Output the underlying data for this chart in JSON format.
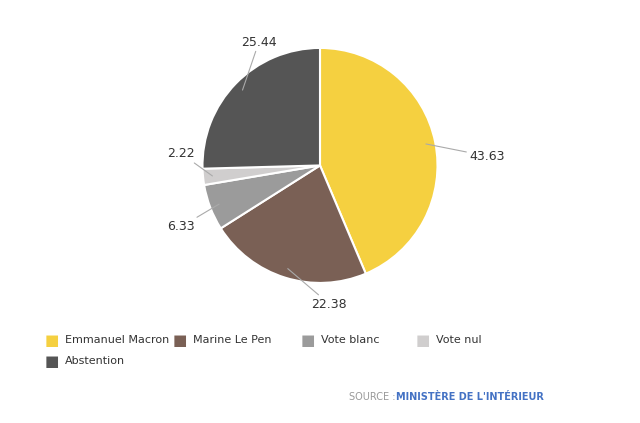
{
  "labels": [
    "Emmanuel Macron",
    "Marine Le Pen",
    "Vote blanc",
    "Vote nul",
    "Abstention"
  ],
  "values": [
    43.63,
    22.38,
    6.33,
    2.22,
    25.44
  ],
  "colors": [
    "#F5D040",
    "#7A6055",
    "#9B9B9B",
    "#D0CECE",
    "#555555"
  ],
  "background_color": "#ffffff",
  "label_texts": [
    "43.63",
    "22.38",
    "6.33",
    "2.22",
    "25.44"
  ],
  "source_prefix": "SOURCE : ",
  "source_main": "MINISTÈRE DE L'INTÉRIEUR",
  "source_prefix_color": "#999999",
  "source_main_color": "#4472C4",
  "legend_colors": [
    "#F5D040",
    "#7A6055",
    "#9B9B9B",
    "#D0CECE",
    "#555555"
  ],
  "legend_labels": [
    "Emmanuel Macron",
    "Marine Le Pen",
    "Vote blanc",
    "Vote nul",
    "Abstention"
  ]
}
